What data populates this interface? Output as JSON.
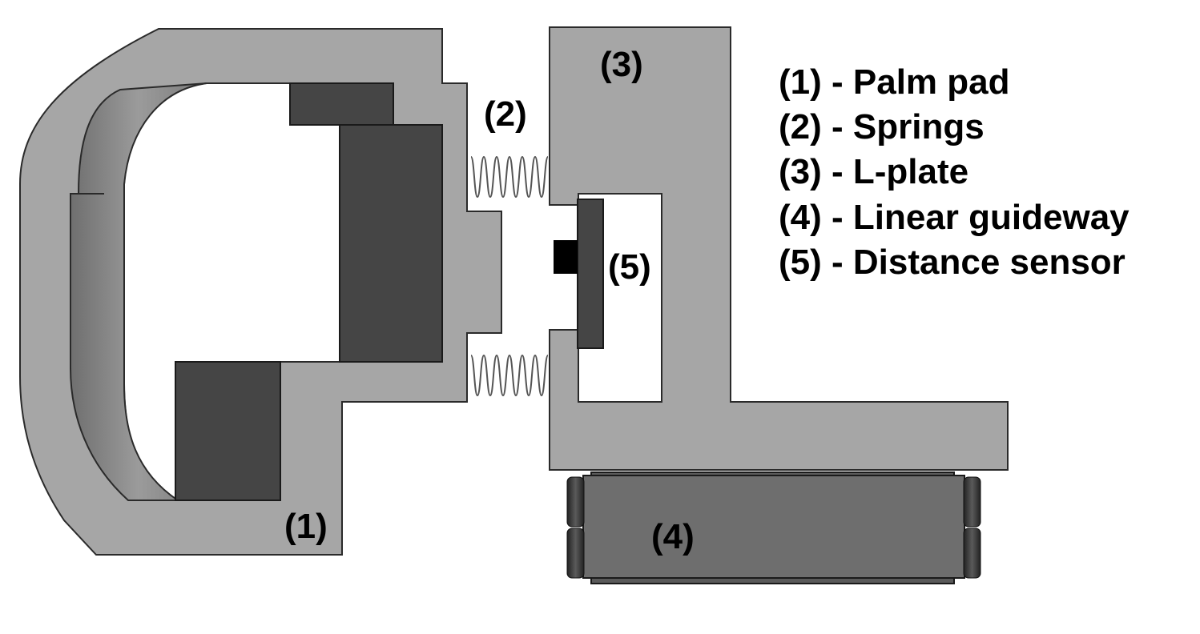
{
  "callouts": {
    "c1": "(1)",
    "c2": "(2)",
    "c3": "(3)",
    "c4": "(4)",
    "c5": "(5)"
  },
  "legend": [
    "(1) - Palm pad",
    "(2) - Springs",
    "(3) - L-plate",
    "(4) - Linear guideway",
    "(5) - Distance sensor"
  ],
  "colors": {
    "housing": "#a6a6a6",
    "dark_part": "#454545",
    "curved_strip": "#8a8a8a",
    "guideway": "#6e6e6e",
    "sensor_dot": "#000000",
    "outline": "#1a1a1a"
  }
}
